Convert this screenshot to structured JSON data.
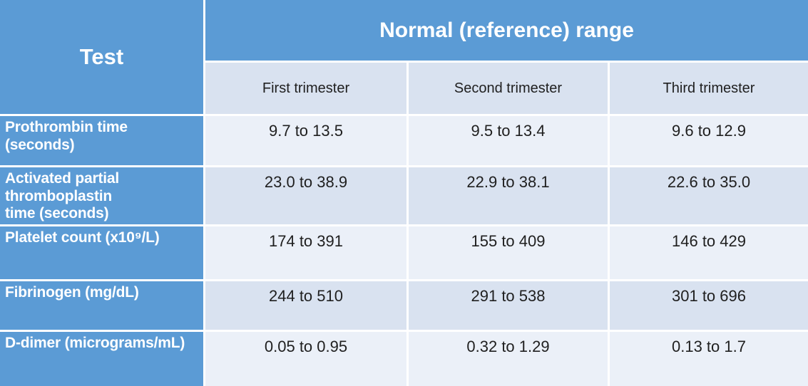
{
  "chart_data": {
    "type": "table",
    "corner_header": "Test",
    "group_header": "Normal (reference) range",
    "columns": [
      "First trimester",
      "Second trimester",
      "Third trimester"
    ],
    "rows": [
      {
        "test": "Prothrombin time (seconds)",
        "test_display": "Prothrombin time\n(seconds)",
        "values": [
          "9.7 to 13.5",
          "9.5 to 13.4",
          "9.6 to 12.9"
        ]
      },
      {
        "test": "Activated partial thromboplastin time (seconds)",
        "test_display": "Activated partial\nthromboplastin\ntime (seconds)",
        "values": [
          "23.0 to 38.9",
          "22.9 to 38.1",
          "22.6 to 35.0"
        ]
      },
      {
        "test": "Platelet count (x10⁹/L)",
        "test_display": "Platelet count (x10⁹/L)",
        "values": [
          "174 to 391",
          "155 to 409",
          "146 to 429"
        ]
      },
      {
        "test": "Fibrinogen (mg/dL)",
        "test_display": "Fibrinogen (mg/dL)",
        "values": [
          "244 to 510",
          "291 to 538",
          "301 to 696"
        ]
      },
      {
        "test": "D-dimer (micrograms/mL)",
        "test_display": "D-dimer (micrograms/mL)",
        "values": [
          "0.05 to 0.95",
          "0.32 to 1.29",
          "0.13 to 1.7"
        ]
      }
    ],
    "colors": {
      "header_blue": "#5B9BD5",
      "band_light": "#EBF0F8",
      "band_dark": "#D9E2F0",
      "grid_white": "#FFFFFF",
      "text_dark": "#1F1F1F"
    }
  }
}
